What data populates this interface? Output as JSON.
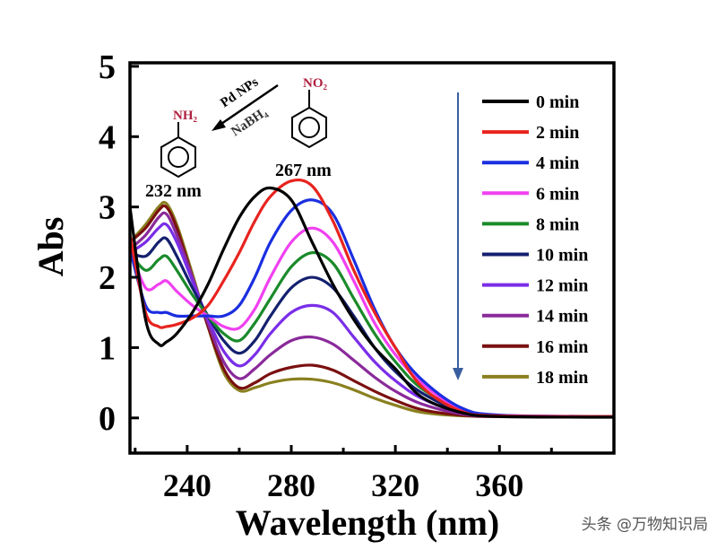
{
  "chart_data": {
    "type": "line",
    "title": "",
    "xlabel": "Wavelength (nm)",
    "ylabel": "Abs",
    "xlim": [
      218,
      404
    ],
    "ylim": [
      -0.5,
      5.05
    ],
    "xticks": [
      240,
      280,
      320,
      360
    ],
    "yticks": [
      0,
      1,
      2,
      3,
      4,
      5
    ],
    "grid": false,
    "legend_position": "top-right",
    "x": [
      218,
      224,
      229,
      232,
      236,
      242,
      248,
      254,
      260,
      266,
      272,
      280,
      288,
      296,
      304,
      312,
      320,
      330,
      345,
      360,
      404
    ],
    "series": [
      {
        "name": "0 min",
        "color": "#000000",
        "values": [
          3.0,
          1.4,
          1.05,
          1.08,
          1.2,
          1.5,
          1.9,
          2.4,
          2.85,
          3.15,
          3.27,
          3.1,
          2.5,
          1.9,
          1.4,
          1.0,
          0.7,
          0.3,
          0.08,
          0.02,
          0.01
        ]
      },
      {
        "name": "2 min",
        "color": "#e8231e",
        "values": [
          2.6,
          1.5,
          1.3,
          1.3,
          1.33,
          1.42,
          1.6,
          1.95,
          2.35,
          2.8,
          3.15,
          3.37,
          3.3,
          2.8,
          2.1,
          1.5,
          1.0,
          0.45,
          0.1,
          0.03,
          0.02
        ]
      },
      {
        "name": "4 min",
        "color": "#1a2ee0",
        "values": [
          2.4,
          1.6,
          1.5,
          1.5,
          1.45,
          1.45,
          1.45,
          1.45,
          1.6,
          2.0,
          2.5,
          2.95,
          3.1,
          2.9,
          2.25,
          1.55,
          1.0,
          0.55,
          0.15,
          0.04,
          0.02
        ]
      },
      {
        "name": "6 min",
        "color": "#f040f0",
        "values": [
          2.4,
          1.85,
          1.9,
          1.95,
          1.8,
          1.6,
          1.45,
          1.3,
          1.28,
          1.55,
          2.0,
          2.5,
          2.7,
          2.5,
          1.95,
          1.35,
          0.9,
          0.5,
          0.13,
          0.04,
          0.02
        ]
      },
      {
        "name": "8 min",
        "color": "#1a8a2a",
        "values": [
          2.35,
          2.1,
          2.25,
          2.3,
          2.1,
          1.75,
          1.45,
          1.2,
          1.1,
          1.35,
          1.7,
          2.15,
          2.35,
          2.2,
          1.7,
          1.2,
          0.8,
          0.42,
          0.12,
          0.03,
          0.02
        ]
      },
      {
        "name": "10 min",
        "color": "#14206e",
        "values": [
          2.35,
          2.3,
          2.5,
          2.55,
          2.3,
          1.85,
          1.45,
          1.1,
          0.92,
          1.1,
          1.45,
          1.85,
          2.0,
          1.85,
          1.45,
          1.0,
          0.66,
          0.36,
          0.1,
          0.03,
          0.02
        ]
      },
      {
        "name": "12 min",
        "color": "#7a2ee8",
        "values": [
          2.35,
          2.5,
          2.7,
          2.75,
          2.5,
          1.95,
          1.4,
          0.95,
          0.74,
          0.9,
          1.2,
          1.5,
          1.6,
          1.5,
          1.15,
          0.8,
          0.53,
          0.28,
          0.08,
          0.03,
          0.02
        ]
      },
      {
        "name": "14 min",
        "color": "#8a2a9a",
        "values": [
          2.4,
          2.6,
          2.85,
          2.9,
          2.6,
          2.0,
          1.35,
          0.8,
          0.56,
          0.7,
          0.9,
          1.1,
          1.15,
          1.05,
          0.82,
          0.58,
          0.38,
          0.2,
          0.06,
          0.02,
          0.02
        ]
      },
      {
        "name": "16 min",
        "color": "#7a1010",
        "values": [
          2.5,
          2.7,
          2.95,
          3.0,
          2.7,
          2.0,
          1.3,
          0.7,
          0.43,
          0.5,
          0.63,
          0.72,
          0.75,
          0.68,
          0.53,
          0.38,
          0.25,
          0.12,
          0.04,
          0.02,
          0.02
        ]
      },
      {
        "name": "18 min",
        "color": "#8a8020",
        "values": [
          2.5,
          2.75,
          3.0,
          3.05,
          2.75,
          2.05,
          1.3,
          0.65,
          0.39,
          0.43,
          0.5,
          0.55,
          0.55,
          0.5,
          0.4,
          0.28,
          0.18,
          0.08,
          0.03,
          0.02,
          0.02
        ]
      }
    ],
    "annotations": {
      "peak_nitro": "267 nm",
      "peak_amine": "232 nm",
      "amine_group": "NH₂",
      "nitro_group": "NO₂",
      "catalyst": "Pd NPs",
      "reductant": "NaBH₄"
    },
    "arrow_color": "#3a5fa0"
  },
  "watermark": "头条 @万物知识局"
}
